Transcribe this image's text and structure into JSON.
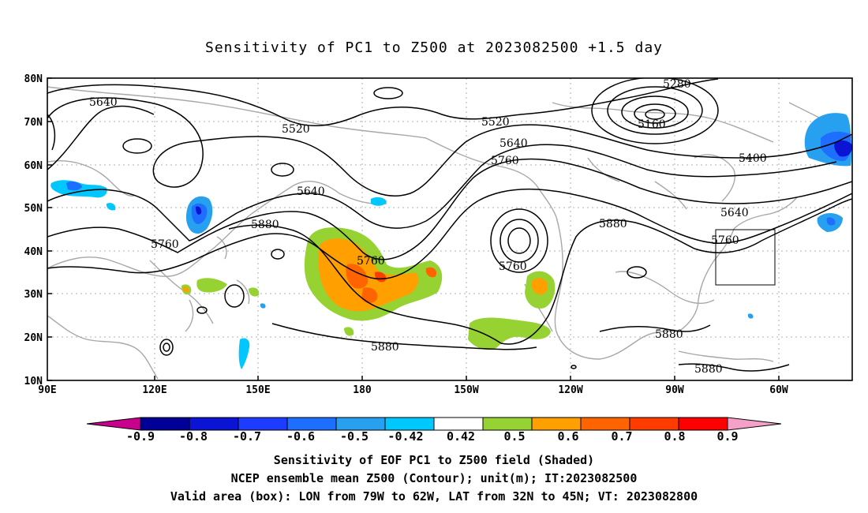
{
  "title": "Sensitivity of PC1 to Z500 at 2023082500 +1.5 day",
  "map": {
    "lat_labels": [
      "80N",
      "70N",
      "60N",
      "50N",
      "40N",
      "30N",
      "20N",
      "10N"
    ],
    "lon_labels": [
      "90E",
      "120E",
      "150E",
      "180",
      "150W",
      "120W",
      "90W",
      "60W"
    ],
    "contour_labels": [
      "5640",
      "5520",
      "5520",
      "5280",
      "5160",
      "5640",
      "5760",
      "5400",
      "5640",
      "5640",
      "5760",
      "5880",
      "5760",
      "5760",
      "5880",
      "5760",
      "5880",
      "5880",
      "5880"
    ]
  },
  "colorbar": {
    "labels": [
      "-0.9",
      "-0.8",
      "-0.7",
      "-0.6",
      "-0.5",
      "-0.42",
      "0.42",
      "0.5",
      "0.6",
      "0.7",
      "0.8",
      "0.9"
    ],
    "colors": [
      "#000096",
      "#0a14d2",
      "#1e3cff",
      "#1e6eff",
      "#28a0f0",
      "#00c8ff",
      "#ffffff",
      "#96d232",
      "#ffa000",
      "#ff6400",
      "#ff3c00",
      "#ff0000"
    ],
    "under_color": "#c8008c",
    "over_color": "#f5a0c8"
  },
  "captions": [
    "Sensitivity of EOF PC1 to Z500 field (Shaded)",
    "NCEP ensemble mean Z500 (Contour); unit(m); IT:2023082500",
    "Valid area (box): LON from 79W to 62W, LAT from 32N to 45N; VT: 2023082800"
  ]
}
